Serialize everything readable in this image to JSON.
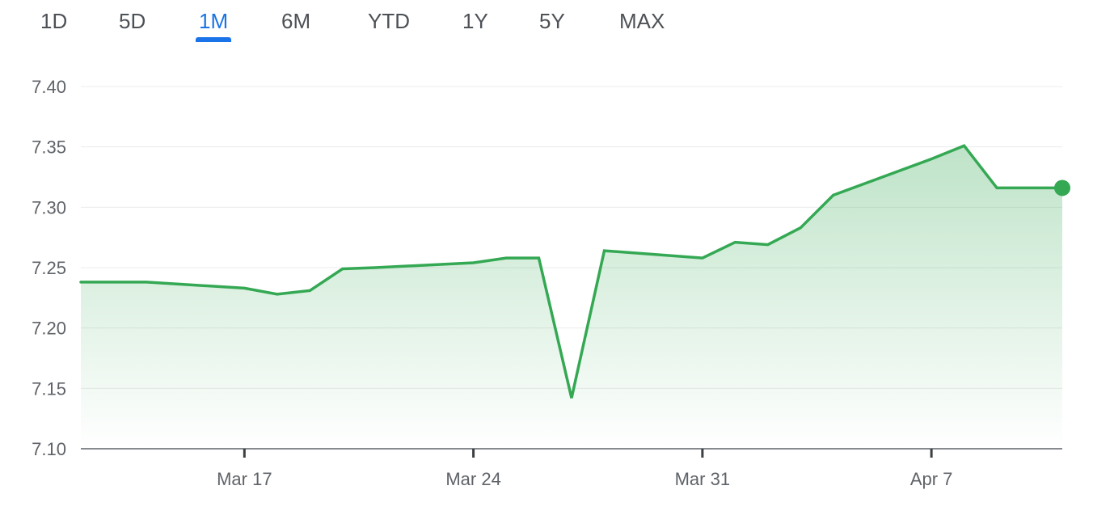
{
  "range_tabs": [
    {
      "label": "1D",
      "active": false
    },
    {
      "label": "5D",
      "active": false
    },
    {
      "label": "1M",
      "active": true
    },
    {
      "label": "6M",
      "active": false
    },
    {
      "label": "YTD",
      "active": false
    },
    {
      "label": "1Y",
      "active": false
    },
    {
      "label": "5Y",
      "active": false
    },
    {
      "label": "MAX",
      "active": false
    }
  ],
  "colors": {
    "line": "#34a853",
    "fill": "#34a853",
    "active_tab": "#1a73e8",
    "tab_text": "#4d5156",
    "grid": "#ececec",
    "axis": "#5f6368"
  },
  "chart_data": {
    "type": "area",
    "title": "",
    "xlabel": "",
    "ylabel": "",
    "x": [
      "2025-03-12",
      "2025-03-13",
      "2025-03-14",
      "2025-03-17",
      "2025-03-18",
      "2025-03-19",
      "2025-03-20",
      "2025-03-21",
      "2025-03-24",
      "2025-03-25",
      "2025-03-26",
      "2025-03-27",
      "2025-03-28",
      "2025-03-31",
      "2025-04-01",
      "2025-04-02",
      "2025-04-03",
      "2025-04-04",
      "2025-04-07",
      "2025-04-08",
      "2025-04-09",
      "2025-04-10",
      "2025-04-11"
    ],
    "values": [
      7.238,
      7.238,
      7.238,
      7.233,
      7.228,
      7.231,
      7.249,
      7.25,
      7.254,
      7.258,
      7.258,
      7.142,
      7.264,
      7.258,
      7.271,
      7.269,
      7.283,
      7.31,
      7.34,
      7.351,
      7.316,
      7.316,
      7.316
    ],
    "x_ticks": [
      {
        "label": "Mar 17",
        "x": "2025-03-17"
      },
      {
        "label": "Mar 24",
        "x": "2025-03-24"
      },
      {
        "label": "Mar 31",
        "x": "2025-03-31"
      },
      {
        "label": "Apr 7",
        "x": "2025-04-07"
      }
    ],
    "y_ticks": [
      "7.40",
      "7.35",
      "7.30",
      "7.25",
      "7.20",
      "7.15",
      "7.10"
    ],
    "ylim": [
      7.1,
      7.4
    ],
    "grid": true,
    "last_point_marker": true
  }
}
